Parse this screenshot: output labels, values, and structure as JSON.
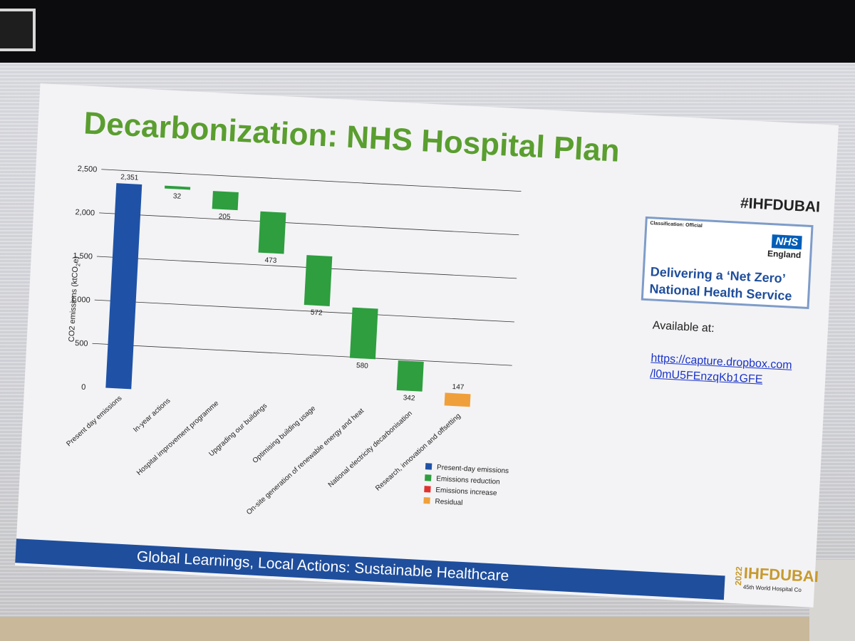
{
  "slide": {
    "title": "Decarbonization: NHS Hospital Plan",
    "hashtag": "#IHFDUBAI",
    "footer": "Global Learnings, Local Actions: Sustainable Healthcare"
  },
  "nhs_card": {
    "classification": "Classification: Official",
    "logo_text": "NHS",
    "logo_sub": "England",
    "headline": "Delivering a ‘Net Zero’ National Health Service"
  },
  "availability": {
    "label": "Available at:",
    "link_line1": "https://capture.dropbox.com",
    "link_line2": "/l0mU5FEnzqKb1GFE"
  },
  "ihf_logo": {
    "year": "2022",
    "name": "IHFDUBAI",
    "tagline": "45th World Hospital Co"
  },
  "colors": {
    "title_green": "#5a9e2f",
    "present_day": "#1f52a6",
    "reduction": "#2e9e3f",
    "increase": "#e0312f",
    "residual": "#f0a03a",
    "footer_blue": "#1f4e9c"
  },
  "chart_data": {
    "type": "waterfall",
    "ylabel": "CO2 emissions (ktCO",
    "ylabel_sub": "2",
    "ylabel_end": "e)",
    "ylim": [
      0,
      2500
    ],
    "yticks": [
      "2,500",
      "2,000",
      "1,500",
      "1,000",
      "500",
      "0"
    ],
    "ytick_values": [
      2500,
      2000,
      1500,
      1000,
      500,
      0
    ],
    "grid": true,
    "categories": [
      "Present day emissions",
      "In-year actions",
      "Hospital improvement programme",
      "Upgrading our buildings",
      "Optimising building usage",
      "On-site generation of renewable energy and heat",
      "National electricity decarbonisation",
      "Research, innovation and offsetting"
    ],
    "values": [
      2351,
      32,
      205,
      473,
      572,
      580,
      342,
      147
    ],
    "value_labels": [
      "2,351",
      "32",
      "205",
      "473",
      "572",
      "580",
      "342",
      "147"
    ],
    "kinds": [
      "present",
      "reduction",
      "reduction",
      "reduction",
      "reduction",
      "reduction",
      "reduction",
      "residual"
    ],
    "legend_position": "bottom-right",
    "legend": [
      {
        "label": "Present-day emissions",
        "kind": "present"
      },
      {
        "label": "Emissions reduction",
        "kind": "reduction"
      },
      {
        "label": "Emissions increase",
        "kind": "increase"
      },
      {
        "label": "Residual",
        "kind": "residual"
      }
    ]
  }
}
